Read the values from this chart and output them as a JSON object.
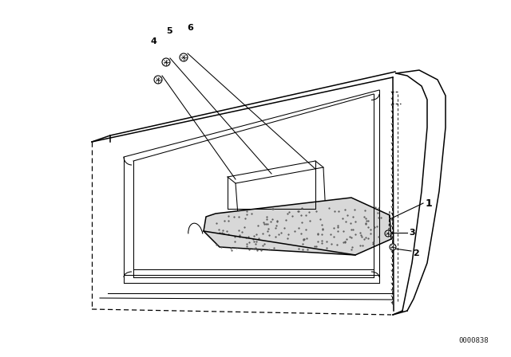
{
  "bg_color": "#ffffff",
  "line_color": "#000000",
  "diagram_code": "0000838",
  "lw_main": 1.1,
  "lw_thin": 0.75,
  "lw_dash": 0.9
}
